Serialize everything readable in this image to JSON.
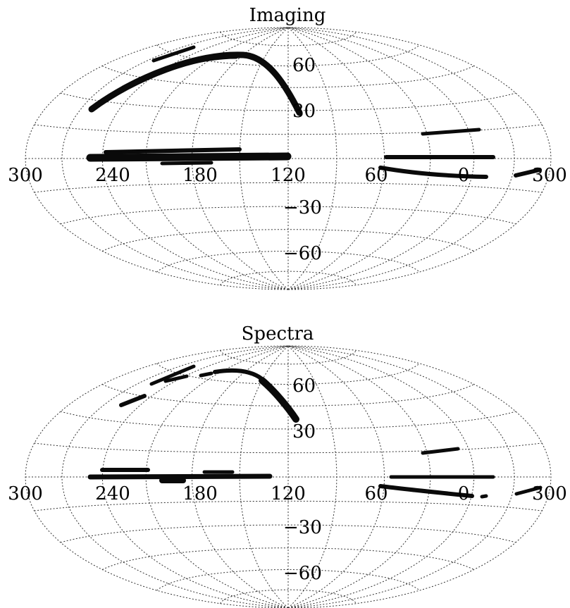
{
  "panels": [
    {
      "title": "Imaging",
      "lon_labels": [
        "300",
        "240",
        "180",
        "120",
        "60",
        "0",
        "300"
      ],
      "lat_labels": [
        "60",
        "30",
        "−30",
        "−60"
      ]
    },
    {
      "title": "Spectra",
      "lon_labels": [
        "300",
        "240",
        "180",
        "120",
        "60",
        "0",
        "300"
      ],
      "lat_labels": [
        "60",
        "30",
        "−30",
        "−60"
      ]
    }
  ],
  "map": {
    "projection": "Aitoff/Hammer equal-area (ellipse)",
    "grid_lines": "dotted",
    "center_longitude": 120,
    "longitude_direction": "decreasing to the right"
  },
  "colors": {
    "survey_stripes": "#0a0a0a",
    "grid": "#333333",
    "background": "#ffffff"
  }
}
